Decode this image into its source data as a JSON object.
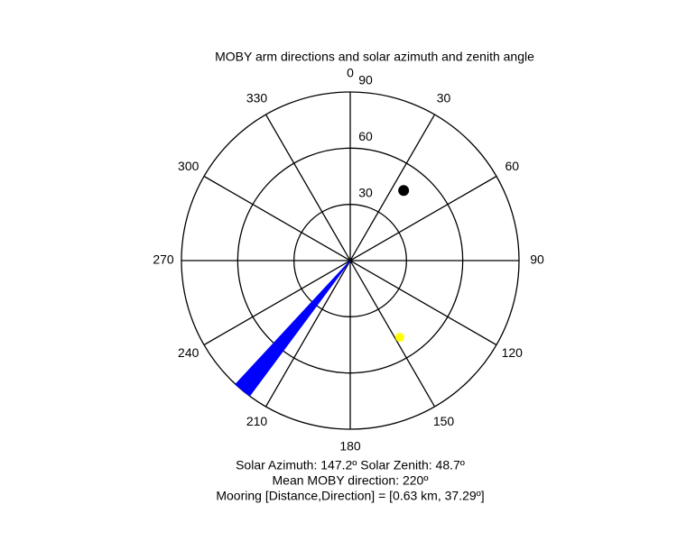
{
  "chart_data": {
    "type": "polar",
    "title": "MOBY arm directions and solar azimuth and zenith angle",
    "theta_zero": "top",
    "theta_direction": "clockwise",
    "thetaticks": [
      0,
      30,
      60,
      90,
      120,
      150,
      180,
      210,
      240,
      270,
      300,
      330
    ],
    "rlim": [
      0,
      90
    ],
    "rticks": [
      30,
      60,
      90
    ],
    "series": [
      {
        "kind": "wedge",
        "color": "#0000ff",
        "azimuth": [
          216.6,
          222.8
        ],
        "zenith": 90
      },
      {
        "kind": "dot",
        "color": "#000000",
        "azimuth": 37.29,
        "zenith": 47
      },
      {
        "kind": "star",
        "color": "#ffff00",
        "azimuth": 147.2,
        "zenith": 48.7
      }
    ],
    "annotations": [
      "Solar Azimuth: 147.2º   Solar Zenith: 48.7º",
      "Mean MOBY direction: 220º",
      "Mooring [Distance,Direction] = [0.63 km, 37.29º]"
    ]
  }
}
